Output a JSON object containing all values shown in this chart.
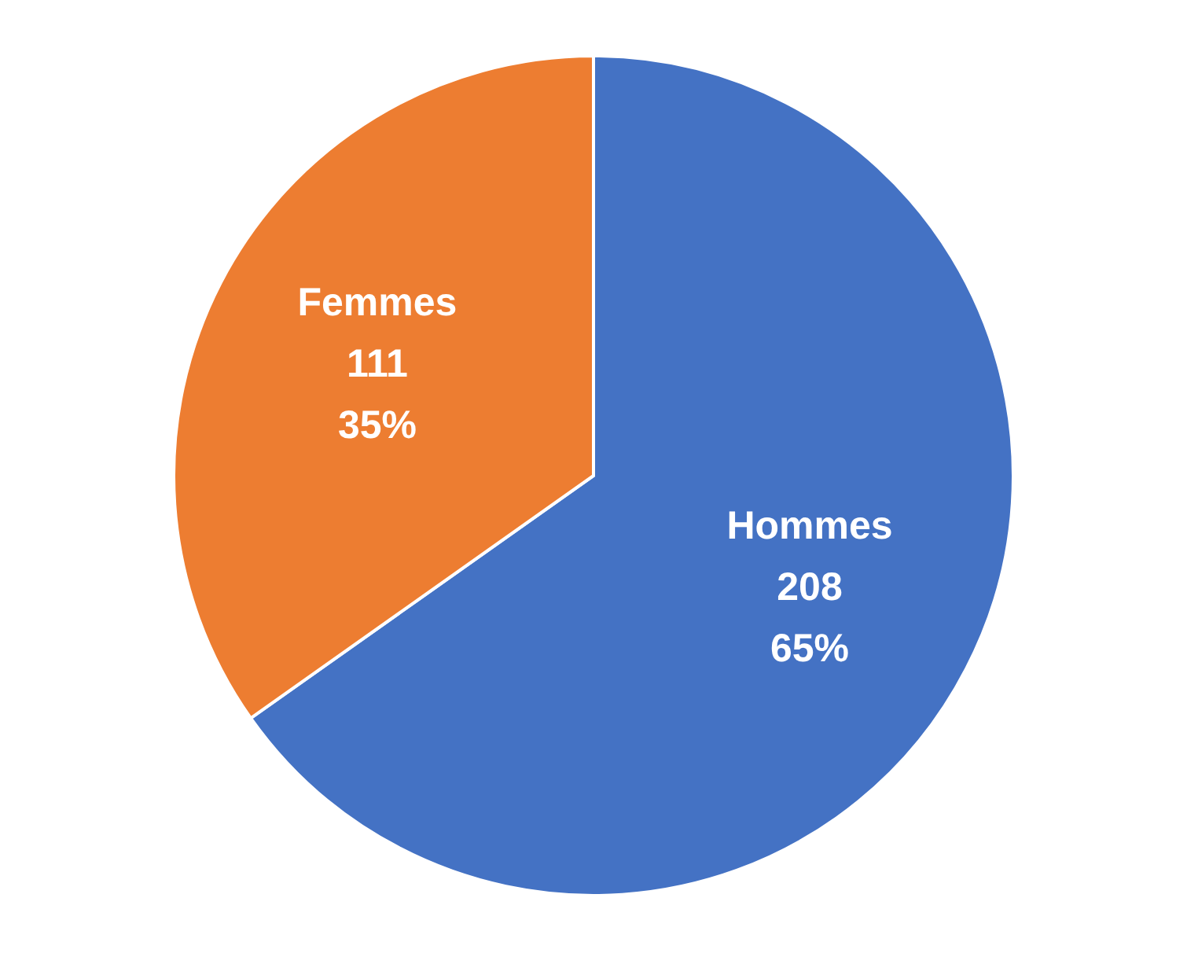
{
  "chart_data": {
    "type": "pie",
    "categories": [
      "Hommes",
      "Femmes"
    ],
    "values": [
      208,
      111
    ],
    "colors": [
      "#4472c4",
      "#ed7d31"
    ],
    "value_labels": [
      "208\n65%",
      "111\n35%"
    ],
    "legend": false
  }
}
